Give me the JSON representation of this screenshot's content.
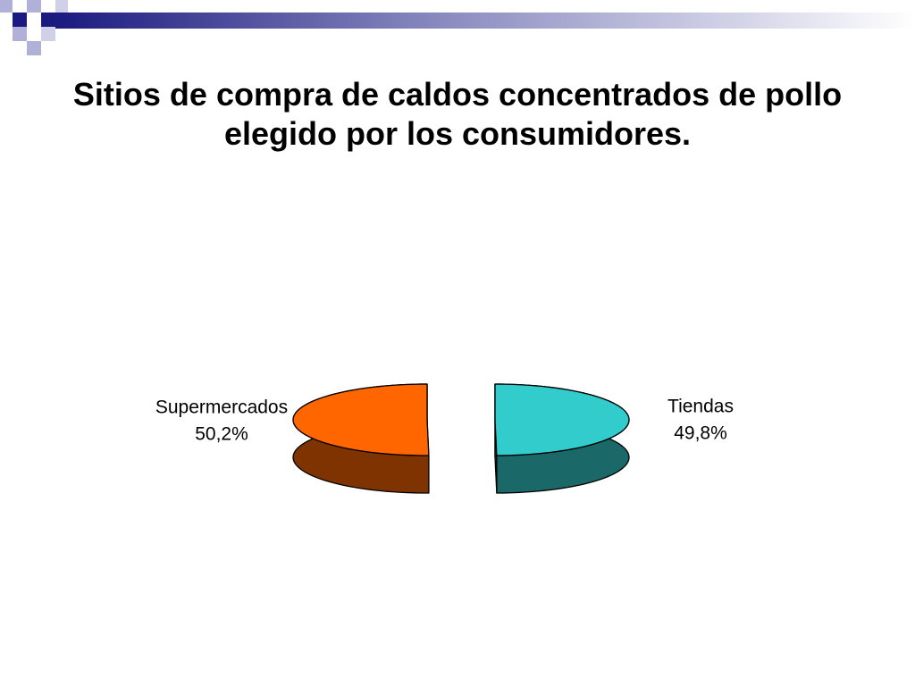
{
  "chart_data": {
    "type": "pie",
    "three_d": true,
    "exploded": true,
    "title": "Sitios de compra de caldos concentrados de pollo elegido por los consumidores.",
    "categories": [
      "Supermercados",
      "Tiendas"
    ],
    "values": [
      50.2,
      49.8
    ],
    "value_labels": [
      "50,2%",
      "49,8%"
    ],
    "colors": [
      "#ff6600",
      "#33cccc"
    ],
    "side_colors": [
      "#7f3300",
      "#1a6868"
    ]
  }
}
